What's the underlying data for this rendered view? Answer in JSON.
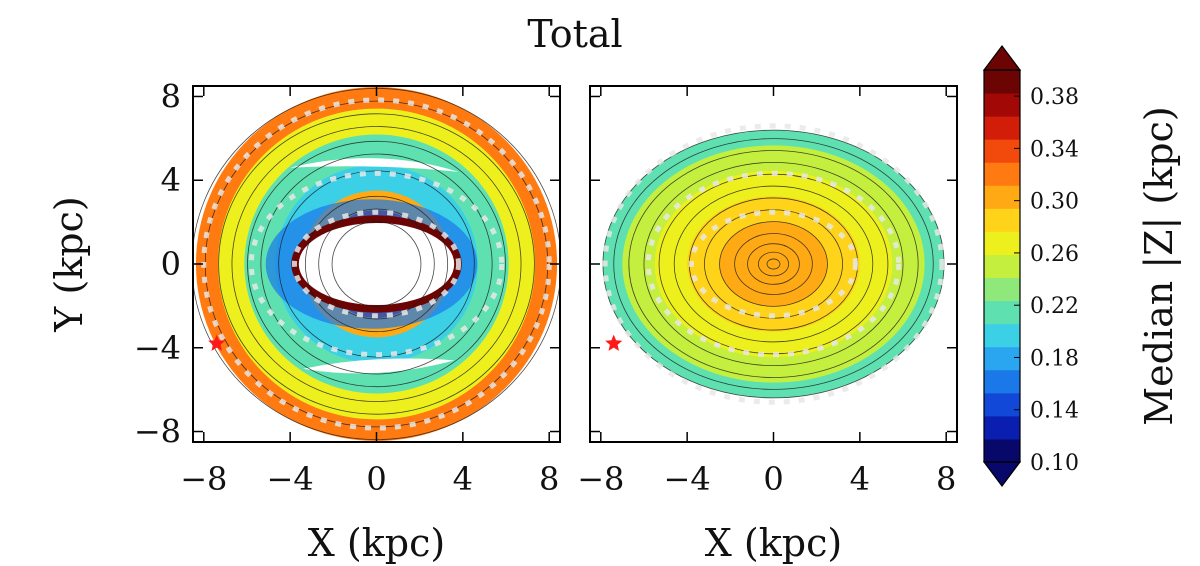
{
  "title": "Total",
  "chart_data": [
    {
      "type": "heatmap",
      "panel": "left",
      "xlabel": "X (kpc)",
      "ylabel": "Y (kpc)",
      "xlim": [
        -8.5,
        8.5
      ],
      "ylim": [
        -8.5,
        8.5
      ],
      "xticks": [
        "−8",
        "−4",
        "0",
        "4",
        "8"
      ],
      "yticks": [
        "8",
        "4",
        "0",
        "−4",
        "−8"
      ],
      "description_values": {
        "inner_hole_semi_axes_kpc": [
          3.6,
          1.9
        ],
        "outer_radius_kpc": 8.5,
        "rings": [
          {
            "r_kpc": 2.5,
            "median_z": 0.38
          },
          {
            "r_kpc": 3.4,
            "median_z": 0.3
          },
          {
            "r_kpc": 4.6,
            "median_z": 0.19
          },
          {
            "r_kpc": 6.0,
            "median_z": 0.22
          },
          {
            "r_kpc": 7.2,
            "median_z": 0.27
          },
          {
            "r_kpc": 8.2,
            "median_z": 0.32
          }
        ]
      },
      "sun": {
        "x": -7.4,
        "y": -3.8
      }
    },
    {
      "type": "heatmap",
      "panel": "right",
      "xlabel": "X (kpc)",
      "xlim": [
        -8.5,
        8.5
      ],
      "ylim": [
        -8.5,
        8.5
      ],
      "xticks": [
        "−8",
        "−4",
        "0",
        "4",
        "8"
      ],
      "description_values": {
        "outer_semi_axes_kpc": [
          7.9,
          6.2
        ],
        "rings": [
          {
            "r_kpc": 0.5,
            "median_z": 0.31
          },
          {
            "r_kpc": 2.5,
            "median_z": 0.3
          },
          {
            "r_kpc": 4.0,
            "median_z": 0.28
          },
          {
            "r_kpc": 5.5,
            "median_z": 0.26
          },
          {
            "r_kpc": 7.0,
            "median_z": 0.25
          },
          {
            "r_kpc": 7.9,
            "median_z": 0.22
          }
        ]
      },
      "sun": {
        "x": -7.4,
        "y": -3.8
      }
    }
  ],
  "colorbar": {
    "label": "Median |Z| (kpc)",
    "min": 0.1,
    "max": 0.4,
    "ticks": [
      "0.38",
      "0.34",
      "0.30",
      "0.26",
      "0.22",
      "0.18",
      "0.14",
      "0.10"
    ],
    "colors": [
      "#08086b",
      "#0a1fb0",
      "#1248d8",
      "#1a78e8",
      "#2aa6f0",
      "#3cd0e6",
      "#5fe0b0",
      "#8ee97a",
      "#c4ef3e",
      "#eef01e",
      "#ffd31a",
      "#ffaa14",
      "#ff7a10",
      "#f24a0c",
      "#d21e08",
      "#a10806",
      "#6d0404"
    ]
  }
}
